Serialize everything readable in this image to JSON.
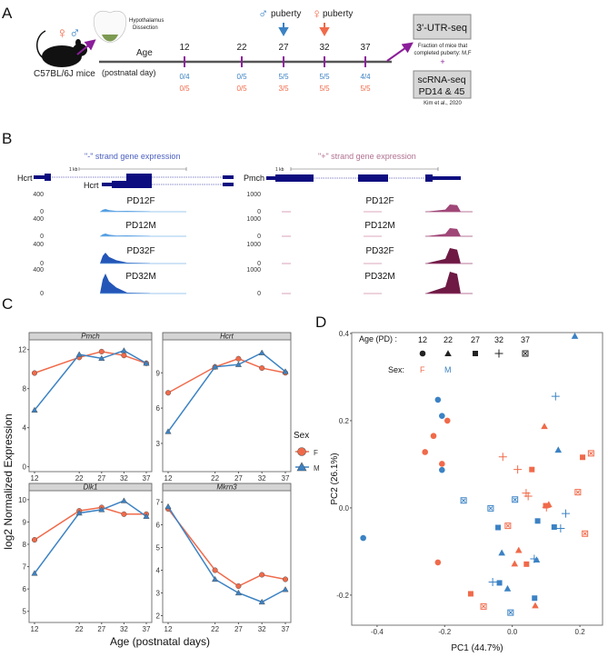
{
  "panel_labels": {
    "a": "A",
    "b": "B",
    "c": "C",
    "d": "D"
  },
  "colors": {
    "female": "#f06a4a",
    "male": "#3b82c4",
    "accent": "#8b1e9a",
    "gene": "#0d0d80",
    "minus_strand": "#4a5fc1",
    "plus_strand": "#b07090"
  },
  "panel_a": {
    "female_symbol": "♀",
    "male_symbol": "♂",
    "dissection_1": "Hypothalamus",
    "dissection_2": "Dissection",
    "mouse_label": "C57BL/6J mice",
    "age_label": "Age",
    "age_unit": "(postnatal day)",
    "ages": [
      {
        "day": "12",
        "male": "0/4",
        "female": "0/5"
      },
      {
        "day": "22",
        "male": "0/5",
        "female": "0/5"
      },
      {
        "day": "27",
        "male": "5/5",
        "female": "3/5"
      },
      {
        "day": "32",
        "male": "5/5",
        "female": "5/5"
      },
      {
        "day": "37",
        "male": "4/4",
        "female": "5/5"
      }
    ],
    "male_puberty": "puberty",
    "female_puberty": "puberty",
    "utr_box": "3'-UTR-seq",
    "fraction_note_1": "Fraction of mice that",
    "fraction_note_2": "completed puberty: M,F",
    "plus": "+",
    "scrna_1": "scRNA-seq",
    "scrna_2": "PD14 & 45",
    "citation": "Kim et al., 2020"
  },
  "panel_b": {
    "minus_title": "\"-\" strand gene expression",
    "plus_title": "\"+\" strand gene expression",
    "scale": "1 kb",
    "left_gene_1": "Hcrt",
    "left_gene_2": "Hcrt",
    "right_gene": "Pmch",
    "tracks": [
      "PD12F",
      "PD12M",
      "PD32F",
      "PD32M"
    ],
    "left_scale": {
      "max": "400",
      "min": "0"
    },
    "right_scale": {
      "max": "1000",
      "min": "0"
    }
  },
  "chart_data": [
    {
      "type": "line",
      "title": "",
      "xlabel": "Age (postnatal days)",
      "ylabel": "log2 Normalized Expression",
      "x": [
        12,
        22,
        27,
        32,
        37
      ],
      "legend": {
        "title": "Sex",
        "entries": [
          "F",
          "M"
        ],
        "placement": "right"
      },
      "facets": [
        {
          "gene": "Pmch",
          "ylim": [
            -0.5,
            13
          ],
          "yticks": [
            0,
            4,
            8,
            12
          ],
          "series": [
            {
              "name": "F",
              "values": [
                9.6,
                11.2,
                11.8,
                11.4,
                10.6
              ]
            },
            {
              "name": "M",
              "values": [
                5.8,
                11.5,
                11.1,
                11.9,
                10.6
              ]
            }
          ]
        },
        {
          "gene": "Hcrt",
          "ylim": [
            0.6,
            11.8
          ],
          "yticks": [
            3,
            6,
            9
          ],
          "series": [
            {
              "name": "F",
              "values": [
                7.3,
                9.5,
                10.2,
                9.4,
                9.0
              ]
            },
            {
              "name": "M",
              "values": [
                4.0,
                9.5,
                9.7,
                10.7,
                9.1
              ]
            }
          ]
        },
        {
          "gene": "Dlk1",
          "ylim": [
            4.5,
            10.4
          ],
          "yticks": [
            5,
            6,
            7,
            8,
            9,
            10
          ],
          "series": [
            {
              "name": "F",
              "values": [
                8.2,
                9.5,
                9.65,
                9.35,
                9.35
              ]
            },
            {
              "name": "M",
              "values": [
                6.7,
                9.4,
                9.55,
                9.95,
                9.25
              ]
            }
          ]
        },
        {
          "gene": "Mkrn3",
          "ylim": [
            1.7,
            7.5
          ],
          "yticks": [
            2,
            3,
            4,
            5,
            6,
            7
          ],
          "series": [
            {
              "name": "F",
              "values": [
                6.7,
                4.0,
                3.3,
                3.8,
                3.6
              ]
            },
            {
              "name": "M",
              "values": [
                6.8,
                3.6,
                3.0,
                2.6,
                3.15
              ]
            }
          ]
        }
      ]
    },
    {
      "type": "scatter",
      "title": "",
      "xlabel": "PC1 (44.7%)",
      "ylabel": "PC2 (26.1%)",
      "xlim": [
        -0.475,
        0.267
      ],
      "ylim": [
        -0.269,
        0.402
      ],
      "xticks": [
        -0.4,
        -0.2,
        0.0,
        0.2
      ],
      "yticks": [
        -0.2,
        0.0,
        0.2,
        0.4
      ],
      "legend": {
        "age_title": "Age (PD) :",
        "ages": [
          "12",
          "22",
          "27",
          "32",
          "37"
        ],
        "sex_title": "Sex:",
        "sexes": [
          "F",
          "M"
        ],
        "placement": "top-left"
      },
      "points": [
        {
          "pc1": -0.22,
          "pc2": 0.248,
          "age": 12,
          "sex": "M"
        },
        {
          "pc1": -0.208,
          "pc2": 0.211,
          "age": 12,
          "sex": "M"
        },
        {
          "pc1": -0.208,
          "pc2": 0.087,
          "age": 12,
          "sex": "M"
        },
        {
          "pc1": -0.441,
          "pc2": -0.069,
          "age": 12,
          "sex": "M"
        },
        {
          "pc1": -0.192,
          "pc2": 0.2,
          "age": 12,
          "sex": "F"
        },
        {
          "pc1": -0.233,
          "pc2": 0.165,
          "age": 12,
          "sex": "F"
        },
        {
          "pc1": -0.258,
          "pc2": 0.128,
          "age": 12,
          "sex": "F"
        },
        {
          "pc1": -0.208,
          "pc2": 0.101,
          "age": 12,
          "sex": "F"
        },
        {
          "pc1": -0.22,
          "pc2": -0.125,
          "age": 12,
          "sex": "F"
        },
        {
          "pc1": 0.185,
          "pc2": 0.394,
          "age": 22,
          "sex": "M"
        },
        {
          "pc1": 0.136,
          "pc2": 0.133,
          "age": 22,
          "sex": "M"
        },
        {
          "pc1": -0.031,
          "pc2": -0.103,
          "age": 22,
          "sex": "M"
        },
        {
          "pc1": 0.072,
          "pc2": -0.119,
          "age": 22,
          "sex": "M"
        },
        {
          "pc1": -0.014,
          "pc2": -0.185,
          "age": 22,
          "sex": "M"
        },
        {
          "pc1": 0.095,
          "pc2": 0.187,
          "age": 22,
          "sex": "F"
        },
        {
          "pc1": 0.108,
          "pc2": 0.008,
          "age": 22,
          "sex": "F"
        },
        {
          "pc1": 0.019,
          "pc2": -0.097,
          "age": 22,
          "sex": "F"
        },
        {
          "pc1": 0.007,
          "pc2": -0.128,
          "age": 22,
          "sex": "F"
        },
        {
          "pc1": 0.068,
          "pc2": -0.224,
          "age": 22,
          "sex": "F"
        },
        {
          "pc1": 0.058,
          "pc2": 0.088,
          "age": 27,
          "sex": "F"
        },
        {
          "pc1": 0.208,
          "pc2": 0.116,
          "age": 27,
          "sex": "F"
        },
        {
          "pc1": 0.099,
          "pc2": 0.005,
          "age": 27,
          "sex": "F"
        },
        {
          "pc1": 0.042,
          "pc2": -0.129,
          "age": 27,
          "sex": "F"
        },
        {
          "pc1": -0.123,
          "pc2": -0.197,
          "age": 27,
          "sex": "F"
        },
        {
          "pc1": 0.075,
          "pc2": -0.03,
          "age": 27,
          "sex": "M"
        },
        {
          "pc1": -0.042,
          "pc2": -0.045,
          "age": 27,
          "sex": "M"
        },
        {
          "pc1": 0.124,
          "pc2": -0.044,
          "age": 27,
          "sex": "M"
        },
        {
          "pc1": -0.038,
          "pc2": -0.172,
          "age": 27,
          "sex": "M"
        },
        {
          "pc1": 0.066,
          "pc2": -0.207,
          "age": 27,
          "sex": "M"
        },
        {
          "pc1": 0.128,
          "pc2": 0.256,
          "age": 32,
          "sex": "M"
        },
        {
          "pc1": 0.158,
          "pc2": -0.013,
          "age": 32,
          "sex": "M"
        },
        {
          "pc1": 0.143,
          "pc2": -0.047,
          "age": 32,
          "sex": "M"
        },
        {
          "pc1": 0.065,
          "pc2": -0.117,
          "age": 32,
          "sex": "M"
        },
        {
          "pc1": -0.058,
          "pc2": -0.17,
          "age": 32,
          "sex": "M"
        },
        {
          "pc1": -0.028,
          "pc2": 0.117,
          "age": 32,
          "sex": "F"
        },
        {
          "pc1": 0.016,
          "pc2": 0.088,
          "age": 32,
          "sex": "F"
        },
        {
          "pc1": 0.041,
          "pc2": 0.034,
          "age": 32,
          "sex": "F"
        },
        {
          "pc1": 0.047,
          "pc2": 0.027,
          "age": 32,
          "sex": "F"
        },
        {
          "pc1": 0.101,
          "pc2": 0.001,
          "age": 32,
          "sex": "F"
        },
        {
          "pc1": 0.233,
          "pc2": 0.125,
          "age": 37,
          "sex": "F"
        },
        {
          "pc1": 0.194,
          "pc2": 0.036,
          "age": 37,
          "sex": "F"
        },
        {
          "pc1": 0.215,
          "pc2": -0.059,
          "age": 37,
          "sex": "F"
        },
        {
          "pc1": -0.013,
          "pc2": -0.041,
          "age": 37,
          "sex": "F"
        },
        {
          "pc1": -0.085,
          "pc2": -0.226,
          "age": 37,
          "sex": "F"
        },
        {
          "pc1": -0.144,
          "pc2": 0.017,
          "age": 37,
          "sex": "M"
        },
        {
          "pc1": 0.008,
          "pc2": 0.019,
          "age": 37,
          "sex": "M"
        },
        {
          "pc1": -0.064,
          "pc2": -0.001,
          "age": 37,
          "sex": "M"
        },
        {
          "pc1": -0.005,
          "pc2": -0.24,
          "age": 37,
          "sex": "M"
        }
      ]
    }
  ]
}
